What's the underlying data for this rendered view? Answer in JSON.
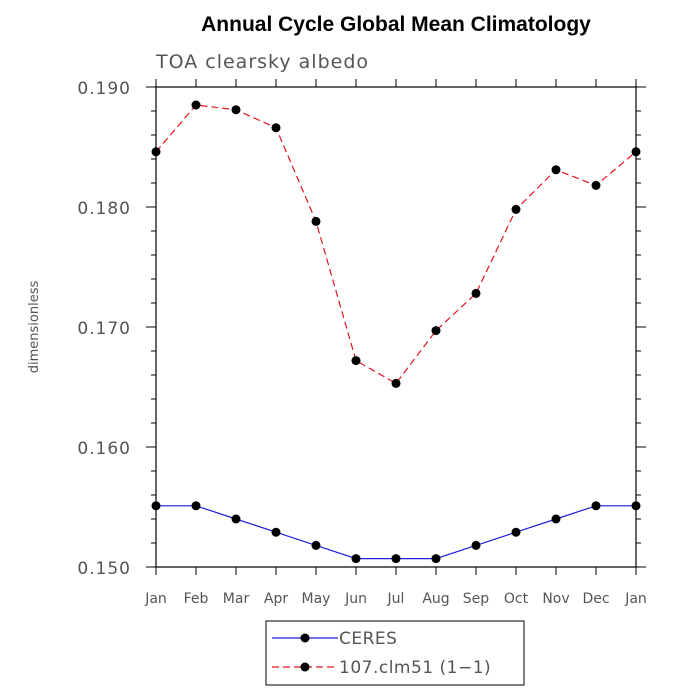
{
  "chart_data": {
    "type": "line",
    "title": "Annual Cycle Global Mean Climatology",
    "subtitle": "TOA clearsky albedo",
    "xlabel": "",
    "ylabel": "dimensionless",
    "categories": [
      "Jan",
      "Feb",
      "Mar",
      "Apr",
      "May",
      "Jun",
      "Jul",
      "Aug",
      "Sep",
      "Oct",
      "Nov",
      "Dec",
      "Jan"
    ],
    "ylim": [
      0.15,
      0.19
    ],
    "yticks": [
      0.15,
      0.16,
      0.17,
      0.18,
      0.19
    ],
    "ytick_labels": [
      "0.150",
      "0.160",
      "0.170",
      "0.180",
      "0.190"
    ],
    "grid": false,
    "legend_position": "bottom-center",
    "series": [
      {
        "name": "CERES",
        "color": "#1f1fd6",
        "line_style": "solid",
        "marker": "filled-circle",
        "values": [
          0.1551,
          0.1551,
          0.154,
          0.1529,
          0.1518,
          0.1507,
          0.1507,
          0.1507,
          0.1518,
          0.1529,
          0.154,
          0.1551,
          0.1551
        ]
      },
      {
        "name": "107.clm51 (1−1)",
        "color": "#e0141e",
        "line_style": "dashed",
        "marker": "filled-circle",
        "values": [
          0.1846,
          0.1885,
          0.1881,
          0.1866,
          0.1788,
          0.1672,
          0.1653,
          0.1697,
          0.1728,
          0.1798,
          0.1831,
          0.1818,
          0.1846
        ]
      }
    ]
  }
}
